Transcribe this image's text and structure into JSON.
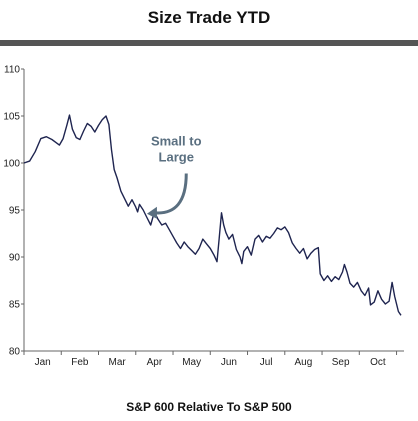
{
  "chart_data": {
    "type": "line",
    "title": "Size Trade YTD",
    "xlabel": "S&P 600 Relative To S&P 500",
    "ylabel": "",
    "ylim": [
      80,
      110
    ],
    "yticks": [
      80,
      85,
      90,
      95,
      100,
      105,
      110
    ],
    "xlim": [
      0,
      10.2
    ],
    "x_tick_labels": [
      "Jan",
      "Feb",
      "Mar",
      "Apr",
      "May",
      "Jun",
      "Jul",
      "Aug",
      "Sep",
      "Oct"
    ],
    "x_tick_positions": [
      0.5,
      1.5,
      2.5,
      3.5,
      4.5,
      5.5,
      6.5,
      7.5,
      8.5,
      9.5
    ],
    "grid": false,
    "series": [
      {
        "color": "#1f2550",
        "points": [
          [
            0.0,
            100.0
          ],
          [
            0.15,
            100.2
          ],
          [
            0.3,
            101.2
          ],
          [
            0.45,
            102.6
          ],
          [
            0.6,
            102.8
          ],
          [
            0.75,
            102.5
          ],
          [
            0.85,
            102.2
          ],
          [
            0.95,
            101.9
          ],
          [
            1.05,
            102.6
          ],
          [
            1.15,
            104.0
          ],
          [
            1.22,
            105.1
          ],
          [
            1.3,
            103.6
          ],
          [
            1.4,
            102.7
          ],
          [
            1.5,
            102.5
          ],
          [
            1.6,
            103.4
          ],
          [
            1.7,
            104.2
          ],
          [
            1.8,
            103.9
          ],
          [
            1.9,
            103.3
          ],
          [
            2.0,
            104.0
          ],
          [
            2.1,
            104.6
          ],
          [
            2.2,
            105.0
          ],
          [
            2.28,
            104.1
          ],
          [
            2.35,
            101.4
          ],
          [
            2.42,
            99.3
          ],
          [
            2.5,
            98.4
          ],
          [
            2.6,
            97.0
          ],
          [
            2.7,
            96.2
          ],
          [
            2.8,
            95.4
          ],
          [
            2.9,
            96.1
          ],
          [
            3.0,
            95.3
          ],
          [
            3.05,
            94.8
          ],
          [
            3.1,
            95.6
          ],
          [
            3.2,
            95.0
          ],
          [
            3.3,
            94.2
          ],
          [
            3.4,
            93.4
          ],
          [
            3.5,
            94.8
          ],
          [
            3.6,
            94.0
          ],
          [
            3.7,
            93.4
          ],
          [
            3.8,
            93.6
          ],
          [
            3.9,
            92.9
          ],
          [
            4.0,
            92.2
          ],
          [
            4.1,
            91.5
          ],
          [
            4.2,
            90.9
          ],
          [
            4.3,
            91.6
          ],
          [
            4.4,
            91.1
          ],
          [
            4.5,
            90.7
          ],
          [
            4.6,
            90.3
          ],
          [
            4.7,
            90.9
          ],
          [
            4.8,
            91.9
          ],
          [
            4.9,
            91.4
          ],
          [
            5.0,
            90.9
          ],
          [
            5.1,
            90.2
          ],
          [
            5.18,
            89.5
          ],
          [
            5.24,
            92.0
          ],
          [
            5.3,
            94.7
          ],
          [
            5.36,
            93.4
          ],
          [
            5.42,
            92.6
          ],
          [
            5.5,
            91.9
          ],
          [
            5.6,
            92.4
          ],
          [
            5.7,
            90.8
          ],
          [
            5.8,
            90.0
          ],
          [
            5.85,
            89.3
          ],
          [
            5.9,
            90.6
          ],
          [
            6.0,
            91.1
          ],
          [
            6.1,
            90.2
          ],
          [
            6.2,
            91.9
          ],
          [
            6.3,
            92.3
          ],
          [
            6.4,
            91.6
          ],
          [
            6.5,
            92.2
          ],
          [
            6.6,
            92.0
          ],
          [
            6.7,
            92.5
          ],
          [
            6.8,
            93.1
          ],
          [
            6.9,
            92.9
          ],
          [
            7.0,
            93.2
          ],
          [
            7.1,
            92.6
          ],
          [
            7.2,
            91.5
          ],
          [
            7.3,
            90.9
          ],
          [
            7.4,
            90.4
          ],
          [
            7.5,
            90.9
          ],
          [
            7.6,
            89.8
          ],
          [
            7.7,
            90.4
          ],
          [
            7.8,
            90.8
          ],
          [
            7.9,
            91.0
          ],
          [
            7.95,
            88.2
          ],
          [
            8.05,
            87.5
          ],
          [
            8.15,
            88.0
          ],
          [
            8.25,
            87.4
          ],
          [
            8.35,
            87.9
          ],
          [
            8.45,
            87.6
          ],
          [
            8.55,
            88.4
          ],
          [
            8.6,
            89.2
          ],
          [
            8.67,
            88.4
          ],
          [
            8.75,
            87.2
          ],
          [
            8.85,
            86.8
          ],
          [
            8.95,
            87.3
          ],
          [
            9.05,
            86.4
          ],
          [
            9.15,
            85.9
          ],
          [
            9.25,
            86.7
          ],
          [
            9.3,
            84.9
          ],
          [
            9.4,
            85.2
          ],
          [
            9.5,
            86.4
          ],
          [
            9.6,
            85.5
          ],
          [
            9.7,
            85.0
          ],
          [
            9.8,
            85.3
          ],
          [
            9.88,
            87.3
          ],
          [
            9.95,
            85.8
          ],
          [
            10.05,
            84.2
          ],
          [
            10.12,
            83.8
          ]
        ]
      }
    ],
    "annotations": [
      {
        "text_lines": [
          "Small to",
          "Large"
        ],
        "x": 3.55,
        "y": 97.6,
        "arrow_to": [
          3.3,
          94.6
        ],
        "color": "#5a6f80"
      }
    ]
  }
}
